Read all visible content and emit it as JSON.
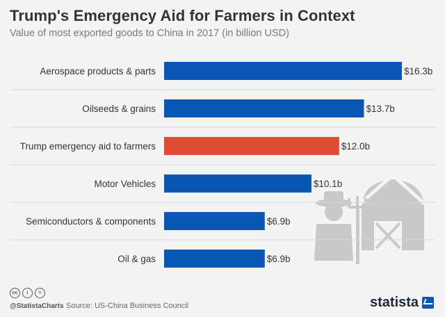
{
  "header": {
    "title": "Trump's Emergency Aid for Farmers in Context",
    "subtitle": "Value of most exported goods to China in 2017 (in billion USD)"
  },
  "chart_data": {
    "type": "bar",
    "orientation": "horizontal",
    "title": "Trump's Emergency Aid for Farmers in Context",
    "subtitle": "Value of most exported goods to China in 2017 (in billion USD)",
    "categories": [
      "Aerospace products & parts",
      "Oilseeds & grains",
      "Trump emergency aid to farmers",
      "Motor Vehicles",
      "Semiconductors & components",
      "Oil & gas"
    ],
    "values": [
      16.3,
      13.7,
      12.0,
      10.1,
      6.9,
      6.9
    ],
    "data_labels": [
      "$16.3b",
      "$13.7b",
      "$12.0b",
      "$10.1b",
      "$6.9b",
      "$6.9b"
    ],
    "highlight_index": 2,
    "grid": false,
    "legend": "none"
  },
  "colors": {
    "bar": "#0a58b5",
    "highlight": "#e04b35",
    "divider": "#d6d6d6",
    "text": "#333333",
    "illustration": "#c9c9c9"
  },
  "footer": {
    "icons": [
      "cc-icon",
      "attribution-icon",
      "equals-icon"
    ],
    "cc_glyphs": [
      "cc",
      "i",
      "="
    ],
    "handle": "@StatistaCharts",
    "source": "Source: US-China Business Council",
    "brand": "statista"
  }
}
